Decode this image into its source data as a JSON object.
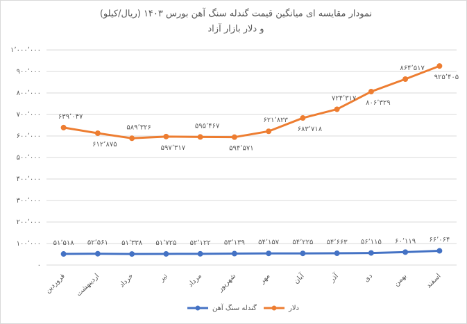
{
  "chart_data": {
    "type": "line",
    "title": "نمودار مقایسه ای میانگین قیمت گندله سنگ آهن بورس ۱۴۰۳ (ریال/کیلو)",
    "subtitle": "و دلار بازار آزاد",
    "categories": [
      "فروردین",
      "اردیبهشت",
      "خرداد",
      "تیر",
      "مرداد",
      "شهریور",
      "مهر",
      "آبان",
      "آذر",
      "دی",
      "بهمن",
      "اسفند"
    ],
    "series": [
      {
        "name": "گندله سنگ آهن",
        "color": "#4472c4",
        "values": [
          51518,
          52561,
          51338,
          51725,
          52122,
          53139,
          54157,
          54225,
          54663,
          56115,
          60119,
          66064
        ],
        "value_labels": [
          "۵۱٬۵۱۸",
          "۵۲٬۵۶۱",
          "۵۱٬۳۳۸",
          "۵۱٬۷۲۵",
          "۵۲٬۱۲۲",
          "۵۳٬۱۳۹",
          "۵۴٬۱۵۷",
          "۵۴٬۲۲۵",
          "۵۴٬۶۶۳",
          "۵۶٬۱۱۵",
          "۶۰٬۱۱۹",
          "۶۶٬۰۶۴"
        ]
      },
      {
        "name": "دلار",
        "color": "#ed7d31",
        "values": [
          639047,
          612875,
          589326,
          597317,
          595467,
          594571,
          621823,
          683718,
          724317,
          806329,
          864517,
          925405
        ],
        "value_labels": [
          "۶۳۹٬۰۴۷",
          "۶۱۲٬۸۷۵",
          "۵۸۹٬۳۲۶",
          "۵۹۷٬۳۱۷",
          "۵۹۵٬۴۶۷",
          "۵۹۴٬۵۷۱",
          "۶۲۱٬۸۲۳",
          "۶۸۳٬۷۱۸",
          "۷۲۴٬۳۱۷",
          "۸۰۶٬۳۲۹",
          "۸۶۴٬۵۱۷",
          "۹۲۵٬۴۰۵"
        ]
      }
    ],
    "ylim": [
      0,
      1000000
    ],
    "yticks": [
      {
        "value": 0,
        "label": "۰"
      },
      {
        "value": 100000,
        "label": "۱۰۰٬۰۰۰"
      },
      {
        "value": 200000,
        "label": "۲۰۰٬۰۰۰"
      },
      {
        "value": 300000,
        "label": "۳۰۰٬۰۰۰"
      },
      {
        "value": 400000,
        "label": "۴۰۰٬۰۰۰"
      },
      {
        "value": 500000,
        "label": "۵۰۰٬۰۰۰"
      },
      {
        "value": 600000,
        "label": "۶۰۰٬۰۰۰"
      },
      {
        "value": 700000,
        "label": "۷۰۰٬۰۰۰"
      },
      {
        "value": 800000,
        "label": "۸۰۰٬۰۰۰"
      },
      {
        "value": 900000,
        "label": "۹۰۰٬۰۰۰"
      },
      {
        "value": 1000000,
        "label": "۱٬۰۰۰٬۰۰۰"
      }
    ],
    "grid": true,
    "legend": "bottom"
  }
}
